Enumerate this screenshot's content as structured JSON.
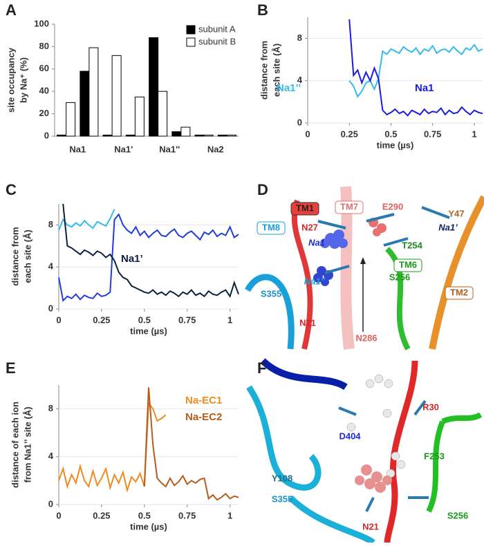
{
  "chart_data": [
    {
      "panel": "A",
      "type": "bar",
      "categories": [
        "Na1",
        null,
        "Na1'",
        null,
        "Na1''",
        null,
        "Na2",
        null
      ],
      "series": [
        {
          "name": "subunit A",
          "color": "#000000",
          "values": [
            1,
            58,
            1,
            1,
            88,
            4,
            1,
            1
          ]
        },
        {
          "name": "subunit B",
          "color": "#ffffff",
          "values": [
            30,
            79,
            72,
            35,
            40,
            8,
            1,
            1
          ]
        }
      ],
      "ylim": [
        0,
        100
      ],
      "yticks": [
        0,
        20,
        40,
        60,
        80,
        100
      ],
      "ylabel": [
        "site occupancy",
        "by Na⁺ (%)"
      ],
      "legend": "upper right"
    },
    {
      "panel": "B",
      "type": "line",
      "x": [
        0.25,
        0.275,
        0.3,
        0.325,
        0.35,
        0.375,
        0.4,
        0.425,
        0.45,
        0.475,
        0.5,
        0.525,
        0.55,
        0.575,
        0.6,
        0.625,
        0.65,
        0.675,
        0.7,
        0.725,
        0.75,
        0.775,
        0.8,
        0.825,
        0.85,
        0.875,
        0.9,
        0.925,
        0.95,
        0.975,
        1,
        1.025,
        1.05
      ],
      "series": [
        {
          "name": "Na1’’",
          "color": "#33bbee",
          "values": [
            4,
            3.5,
            2.5,
            3,
            3.8,
            4,
            3.2,
            4.2,
            6.8,
            6.5,
            7,
            6.8,
            6.6,
            7.2,
            6.9,
            6.7,
            7.1,
            6.5,
            7,
            6.8,
            7.3,
            6.6,
            6.9,
            7,
            6.7,
            7.2,
            6.8,
            6.5,
            7.1,
            6.9,
            7.4,
            6.8,
            7
          ]
        },
        {
          "name": "Na1",
          "color": "#1a1ae6",
          "values": [
            9.8,
            4.5,
            5,
            3.8,
            4.8,
            4,
            5.2,
            4.2,
            1.2,
            0.8,
            1,
            1.3,
            0.9,
            1.1,
            0.7,
            1.2,
            1,
            0.8,
            1.3,
            0.9,
            1.1,
            1,
            1.4,
            0.8,
            1.2,
            0.9,
            1,
            1.5,
            1.1,
            0.8,
            1.2,
            1,
            0.9
          ]
        }
      ],
      "xlim": [
        0,
        1.05
      ],
      "xticks": [
        0,
        0.25,
        0.5,
        0.75,
        1
      ],
      "ylim": [
        0,
        10
      ],
      "yticks": [
        0,
        4,
        8
      ],
      "grid": true,
      "xlabel": "time (µs)",
      "ylabel": [
        "distance from",
        "each site (Å)"
      ]
    },
    {
      "panel": "C",
      "type": "line",
      "x": [
        0,
        0.025,
        0.05,
        0.075,
        0.1,
        0.125,
        0.15,
        0.175,
        0.2,
        0.225,
        0.25,
        0.275,
        0.3,
        0.325,
        0.35,
        0.375,
        0.4,
        0.425,
        0.45,
        0.475,
        0.5,
        0.525,
        0.55,
        0.575,
        0.6,
        0.625,
        0.65,
        0.675,
        0.7,
        0.725,
        0.75,
        0.775,
        0.8,
        0.825,
        0.85,
        0.875,
        0.9,
        0.925,
        0.95,
        0.975,
        1,
        1.025,
        1.05
      ],
      "series": [
        {
          "color": "#33bbee",
          "values": [
            7.5,
            8.5,
            8,
            7.8,
            8.2,
            7.9,
            8.4,
            8,
            7.7,
            8.3,
            8.1,
            7.9,
            8.6,
            9.5,
            null,
            null,
            null,
            null,
            null,
            null,
            null,
            null,
            null,
            null,
            null,
            null,
            null,
            null,
            null,
            null,
            null,
            null,
            null,
            null,
            null,
            null,
            null,
            null,
            null,
            null,
            null,
            null,
            null
          ]
        },
        {
          "color": "#1f3ae0",
          "values": [
            3,
            0.8,
            1.2,
            1,
            1.4,
            0.9,
            1.3,
            1.1,
            1,
            1.5,
            1.2,
            1.3,
            1.6,
            8.5,
            9,
            8,
            7.5,
            7.2,
            7.8,
            7,
            7.4,
            6.8,
            7.2,
            7.5,
            7,
            6.9,
            7.3,
            7.6,
            7,
            6.8,
            7.2,
            7.4,
            7,
            6.6,
            7.3,
            7.1,
            7.5,
            6.9,
            7.2,
            7,
            7.8,
            6.8,
            7.1
          ]
        },
        {
          "name": "Na1’",
          "color": "#0b1f3f",
          "values": [
            null,
            10,
            6,
            5.8,
            5.5,
            5.2,
            5.6,
            5.4,
            5.1,
            5.5,
            5.3,
            4.9,
            5.2,
            4.6,
            3.5,
            3,
            2.8,
            2.2,
            2,
            1.8,
            1.6,
            1.5,
            1.8,
            1.4,
            1.6,
            1.3,
            1.7,
            1.5,
            1.2,
            1.6,
            1.4,
            1.8,
            1.3,
            1.5,
            1.2,
            1.7,
            1.4,
            1.3,
            1.6,
            1.8,
            1.2,
            2.5,
            1.4
          ]
        }
      ],
      "xlim": [
        0,
        1.05
      ],
      "xticks": [
        0,
        0.25,
        0.5,
        0.75,
        1
      ],
      "ylim": [
        0,
        10
      ],
      "yticks": [
        0,
        4,
        8
      ],
      "grid": true,
      "xlabel": "time (µs)",
      "ylabel": [
        "distance from",
        "each site (Å)"
      ]
    },
    {
      "panel": "E",
      "type": "line",
      "x": [
        0,
        0.025,
        0.05,
        0.075,
        0.1,
        0.125,
        0.15,
        0.175,
        0.2,
        0.225,
        0.25,
        0.275,
        0.3,
        0.325,
        0.35,
        0.375,
        0.4,
        0.425,
        0.45,
        0.475,
        0.5,
        0.525,
        0.55,
        0.575,
        0.6,
        0.625,
        0.65,
        0.675,
        0.7,
        0.725,
        0.75,
        0.775,
        0.8,
        0.825,
        0.85,
        0.875,
        0.9,
        0.925,
        0.95,
        0.975,
        1,
        1.025,
        1.05
      ],
      "series": [
        {
          "name": "Na-EC1",
          "color": "#f08a1e",
          "values": [
            2,
            3,
            1.5,
            2.5,
            1.8,
            3.2,
            2,
            1.5,
            2.8,
            1.6,
            2.2,
            3,
            1.4,
            2.5,
            1.8,
            2.7,
            1.2,
            2.3,
            1.9,
            2.6,
            1.5,
            8.5,
            8,
            7,
            7.2,
            7.5,
            null,
            null,
            null,
            null,
            null,
            null,
            null,
            null,
            null,
            null,
            null,
            null,
            null,
            null,
            null,
            null,
            null
          ]
        },
        {
          "name": "Na-EC2",
          "color": "#b85a1a",
          "values": [
            null,
            null,
            null,
            null,
            null,
            null,
            null,
            null,
            null,
            null,
            null,
            null,
            null,
            null,
            null,
            null,
            null,
            null,
            null,
            null,
            1.5,
            9.8,
            5,
            2.2,
            1.8,
            1.5,
            2.2,
            1.6,
            1.9,
            2.4,
            1.7,
            2,
            1.8,
            2.1,
            2.2,
            0.5,
            0.8,
            0.4,
            0.6,
            0.9,
            0.5,
            0.7,
            0.6
          ]
        }
      ],
      "xlim": [
        0,
        1.05
      ],
      "xticks": [
        0,
        0.25,
        0.5,
        0.75,
        1
      ],
      "ylim": [
        0,
        10
      ],
      "yticks": [
        0,
        4,
        8
      ],
      "grid": true,
      "xlabel": "time (µs)",
      "ylabel": [
        "distance of each ion",
        "from Na1’’ site (Å)"
      ]
    }
  ],
  "images": [
    {
      "panel": "D",
      "labels": [
        "TM1",
        "TM7",
        "E290",
        "Y47",
        "TM8",
        "N27",
        "Na1",
        "Na1’",
        "T254",
        "TM6",
        "TM2",
        "S355",
        "Na1’’",
        "S256",
        "N21",
        "N286"
      ]
    },
    {
      "panel": "F",
      "labels": [
        "D404",
        "R30",
        "F253",
        "Y108",
        "S355",
        "S256",
        "N21"
      ]
    }
  ]
}
